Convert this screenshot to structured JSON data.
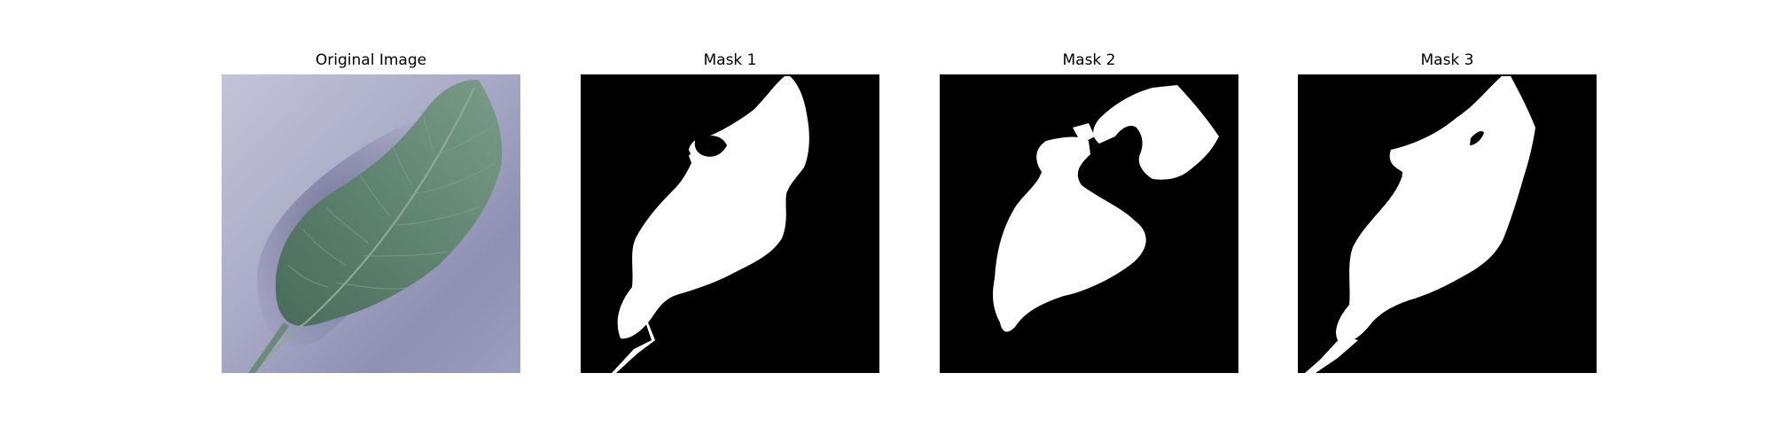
{
  "figure": {
    "panels": [
      {
        "title": "Original Image",
        "kind": "photo",
        "subject": "leaf-photo"
      },
      {
        "title": "Mask 1",
        "kind": "mask",
        "subject": "leaf-mask"
      },
      {
        "title": "Mask 2",
        "kind": "mask",
        "subject": "leaf-mask"
      },
      {
        "title": "Mask 3",
        "kind": "mask",
        "subject": "leaf-mask"
      }
    ]
  },
  "colors": {
    "background": "#ffffff",
    "mask_background": "#000000",
    "mask_foreground": "#ffffff",
    "leaf_green": "#5a7d6b",
    "surface_lavender": "#b7b9d2"
  }
}
